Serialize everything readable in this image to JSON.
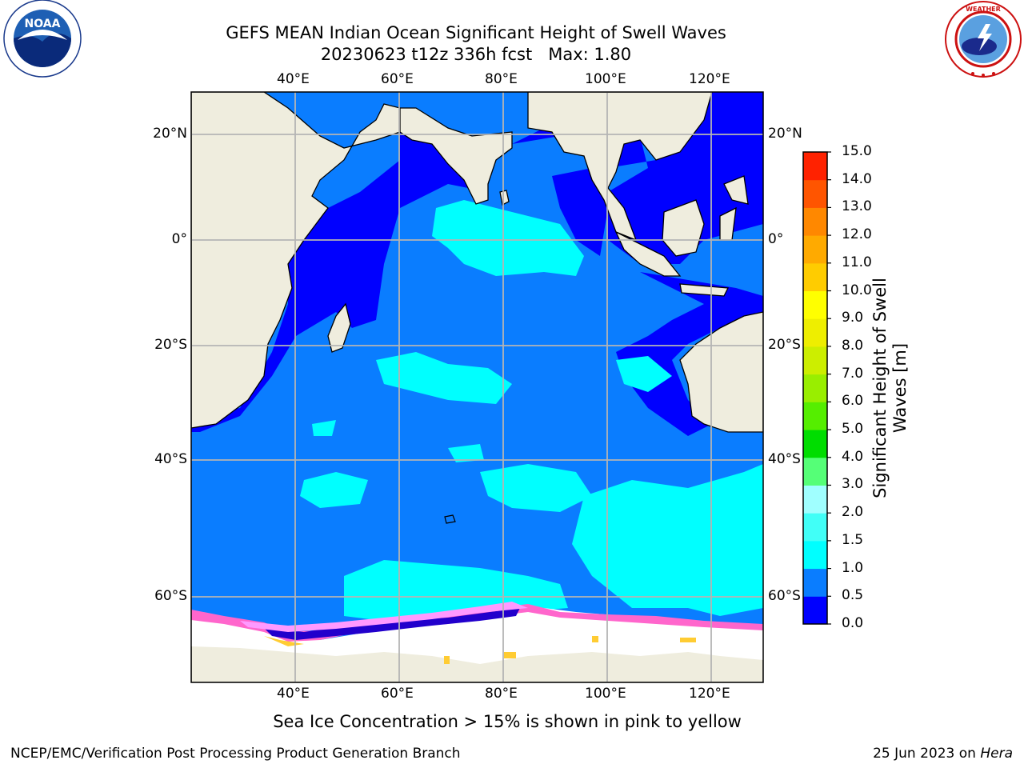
{
  "header": {
    "title_line1": "GEFS MEAN Indian Ocean Significant Height of Swell Waves",
    "title_line2": "20230623 t12z 336h fcst   Max: 1.80"
  },
  "logos": {
    "left": {
      "icon": "noaa-logo",
      "text": "NOAA"
    },
    "right": {
      "icon": "national-weather-service-logo",
      "text": "NATIONAL WEATHER SERVICE"
    }
  },
  "map": {
    "lon_labels": [
      "40°E",
      "60°E",
      "80°E",
      "100°E",
      "120°E"
    ],
    "lat_labels": [
      "20°N",
      "0°",
      "20°S",
      "40°S",
      "60°S"
    ],
    "land_color": "#efedde",
    "grid_color": "#b4b4b4",
    "ice_colors": [
      "#ff66cc",
      "#ff99ff",
      "#ffcc33",
      "#2200cc"
    ]
  },
  "colorbar": {
    "title_line1": "Significant Height of Swell",
    "title_line2": "Waves [m]",
    "tick_labels": [
      "0.0",
      "0.5",
      "1.0",
      "1.5",
      "2.0",
      "3.0",
      "4.0",
      "5.0",
      "6.0",
      "7.0",
      "8.0",
      "9.0",
      "10.0",
      "11.0",
      "12.0",
      "13.0",
      "14.0",
      "15.0"
    ],
    "colors": [
      "#0000ff",
      "#0a7dff",
      "#00ffff",
      "#41fff7",
      "#a0ffff",
      "#55ff77",
      "#00dd00",
      "#55ee00",
      "#99ee00",
      "#ccee00",
      "#eeee00",
      "#ffff00",
      "#ffcc00",
      "#ffaa00",
      "#ff8800",
      "#ff5500",
      "#ff2200",
      "#ff0000"
    ]
  },
  "caption": "Sea Ice Concentration > 15% is shown in pink to yellow",
  "footer": {
    "left": "NCEP/EMC/Verification Post Processing Product Generation Branch",
    "right_prefix": "25 Jun 2023 on ",
    "right_host": "Hera"
  }
}
